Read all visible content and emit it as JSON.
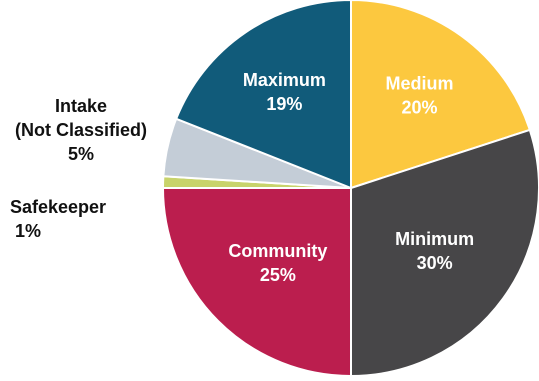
{
  "chart_data": {
    "type": "pie",
    "title": "",
    "slices": [
      {
        "label": "Medium",
        "value": 20,
        "value_label": "20%",
        "color": "#fcc83f"
      },
      {
        "label": "Minimum",
        "value": 30,
        "value_label": "30%",
        "color": "#474648"
      },
      {
        "label": "Community",
        "value": 25,
        "value_label": "25%",
        "color": "#bb1e4e"
      },
      {
        "label": "Safekeeper",
        "value": 1,
        "value_label": "1%",
        "color": "#c8d36b"
      },
      {
        "label": "Intake\n(Not Classified)",
        "value": 5,
        "value_label": "5%",
        "color": "#c4cdd7"
      },
      {
        "label": "Maximum",
        "value": 19,
        "value_label": "19%",
        "color": "#115b7a"
      }
    ],
    "start_angle_deg": 0,
    "direction": "clockwise",
    "legend": "none"
  }
}
